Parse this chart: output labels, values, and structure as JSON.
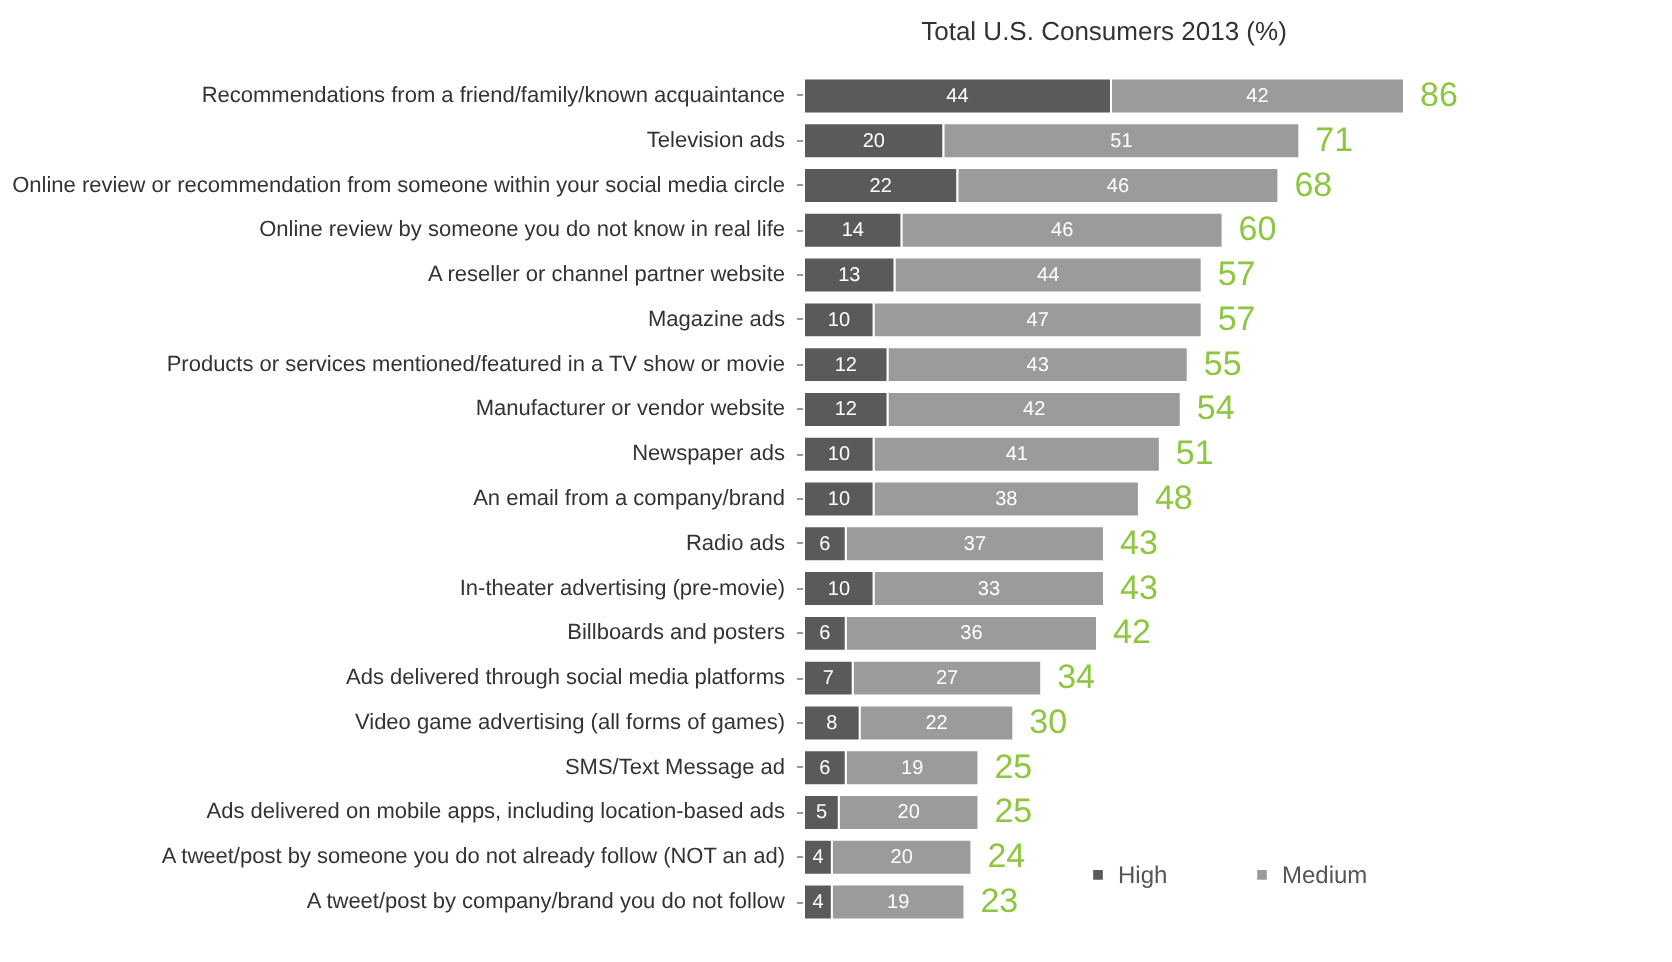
{
  "chart_data": {
    "type": "bar",
    "orientation": "horizontal",
    "stacked": true,
    "data_labels": true,
    "legend": "bottom right",
    "title": "Total U.S. Consumers 2013 (%)",
    "categories": [
      "Recommendations from a friend/family/known acquaintance",
      "Television ads",
      "Online review or recommendation from someone within your social media circle",
      "Online review by someone you do not know in real life",
      "A reseller or channel partner website",
      "Magazine ads",
      "Products or services mentioned/featured in a TV show or movie",
      "Manufacturer or vendor website",
      "Newspaper ads",
      "An email from a company/brand",
      "Radio ads",
      "In-theater advertising (pre-movie)",
      "Billboards and posters",
      "Ads delivered through social media platforms",
      "Video game advertising (all forms of games)",
      "SMS/Text Message ad",
      "Ads delivered on mobile apps, including location-based ads",
      "A tweet/post by someone you do not already follow (NOT an ad)",
      "A tweet/post by company/brand you do not follow"
    ],
    "series": [
      {
        "name": "High",
        "color": "#5a5a5a",
        "values": [
          44,
          20,
          22,
          14,
          13,
          10,
          12,
          12,
          10,
          10,
          6,
          10,
          6,
          7,
          8,
          6,
          5,
          4,
          4
        ]
      },
      {
        "name": "Medium",
        "color": "#9b9b9b",
        "values": [
          42,
          51,
          46,
          46,
          44,
          47,
          43,
          42,
          41,
          38,
          37,
          33,
          36,
          27,
          22,
          19,
          20,
          20,
          19
        ]
      }
    ],
    "totals": [
      "86",
      "71",
      "68",
      "60",
      "57",
      "57",
      "55",
      "54",
      "51",
      "48",
      "43",
      "43",
      "42",
      "34",
      "30",
      "25",
      "25",
      "24",
      "23"
    ]
  }
}
